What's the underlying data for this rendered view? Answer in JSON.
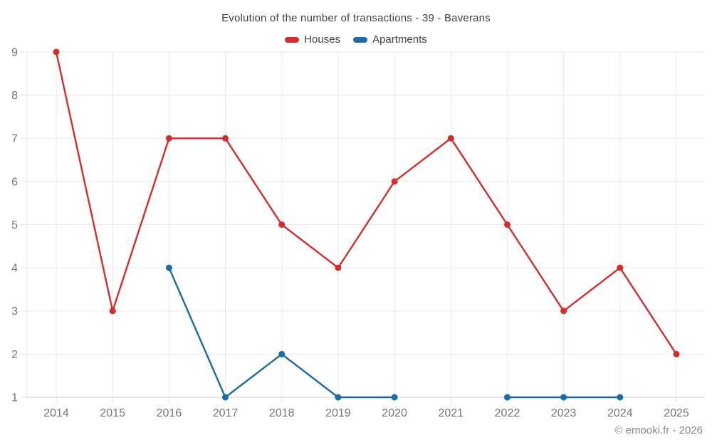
{
  "chart_data": {
    "type": "line",
    "title": "Evolution of the number of transactions - 39 - Baverans",
    "categories": [
      "2014",
      "2015",
      "2016",
      "2017",
      "2018",
      "2019",
      "2020",
      "2021",
      "2022",
      "2023",
      "2024",
      "2025"
    ],
    "series": [
      {
        "name": "Houses",
        "color": "#d62c2c",
        "values": [
          9,
          3,
          7,
          7,
          5,
          4,
          6,
          7,
          5,
          3,
          4,
          2
        ]
      },
      {
        "name": "Apartments",
        "color": "#1b6ba6",
        "values": [
          null,
          null,
          4,
          1,
          2,
          1,
          1,
          null,
          1,
          1,
          1,
          null
        ]
      }
    ],
    "ylim": [
      1,
      9
    ],
    "yticks": [
      1,
      2,
      3,
      4,
      5,
      6,
      7,
      8,
      9
    ],
    "grid": true,
    "legend_position": "top",
    "footer": "© emooki.fr - 2026"
  },
  "colors": {
    "grid": "#e9e9e9",
    "axis": "#cfcfcf",
    "tick": "#e0e0e0",
    "axis_label": "#757575",
    "title_text": "#424242",
    "footer_text": "#8a8a8a"
  }
}
